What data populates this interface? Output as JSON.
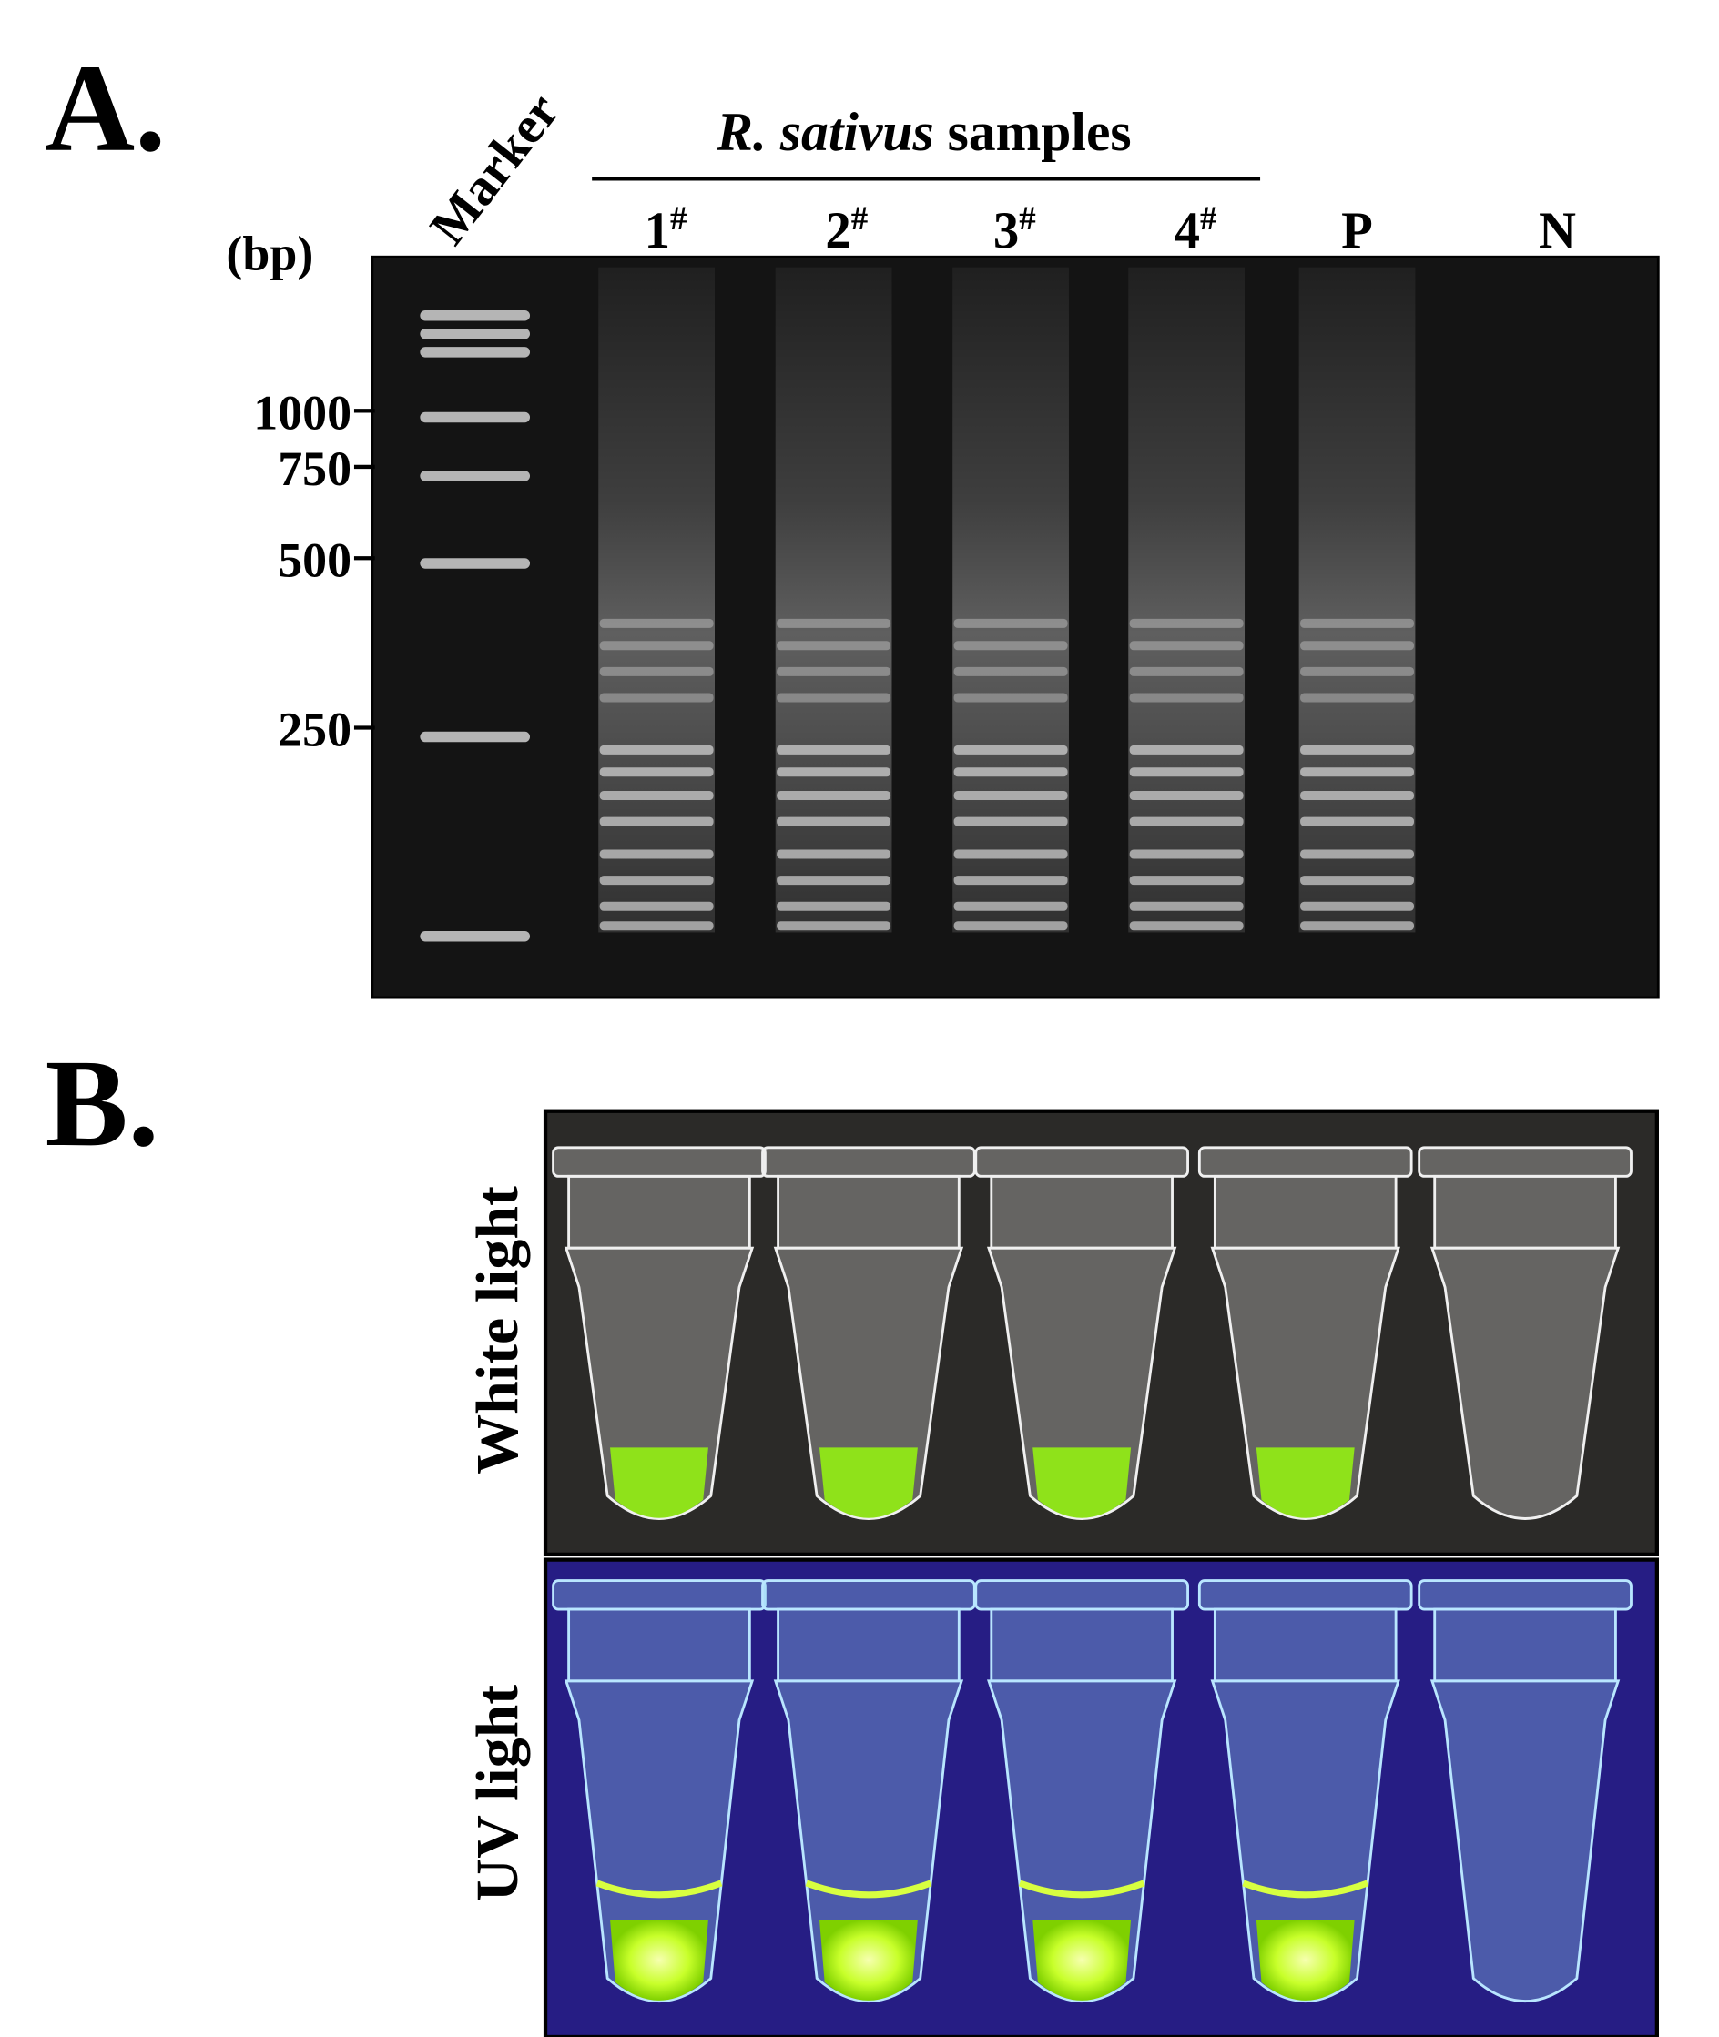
{
  "panel_a": {
    "label": "A.",
    "marker_label": "Marker",
    "group_label": {
      "species": "R. sativus",
      "suffix": "samples"
    },
    "lanes": [
      {
        "number": "1",
        "superscript": "#"
      },
      {
        "number": "2",
        "superscript": "#"
      },
      {
        "number": "3",
        "superscript": "#"
      },
      {
        "number": "4",
        "superscript": "#"
      },
      {
        "number": "P"
      },
      {
        "number": "N"
      }
    ],
    "size_unit": "(bp)",
    "size_markers": [
      1000,
      750,
      500,
      250
    ]
  },
  "panel_b": {
    "label": "B.",
    "rows": [
      "White light",
      "UV light"
    ]
  }
}
